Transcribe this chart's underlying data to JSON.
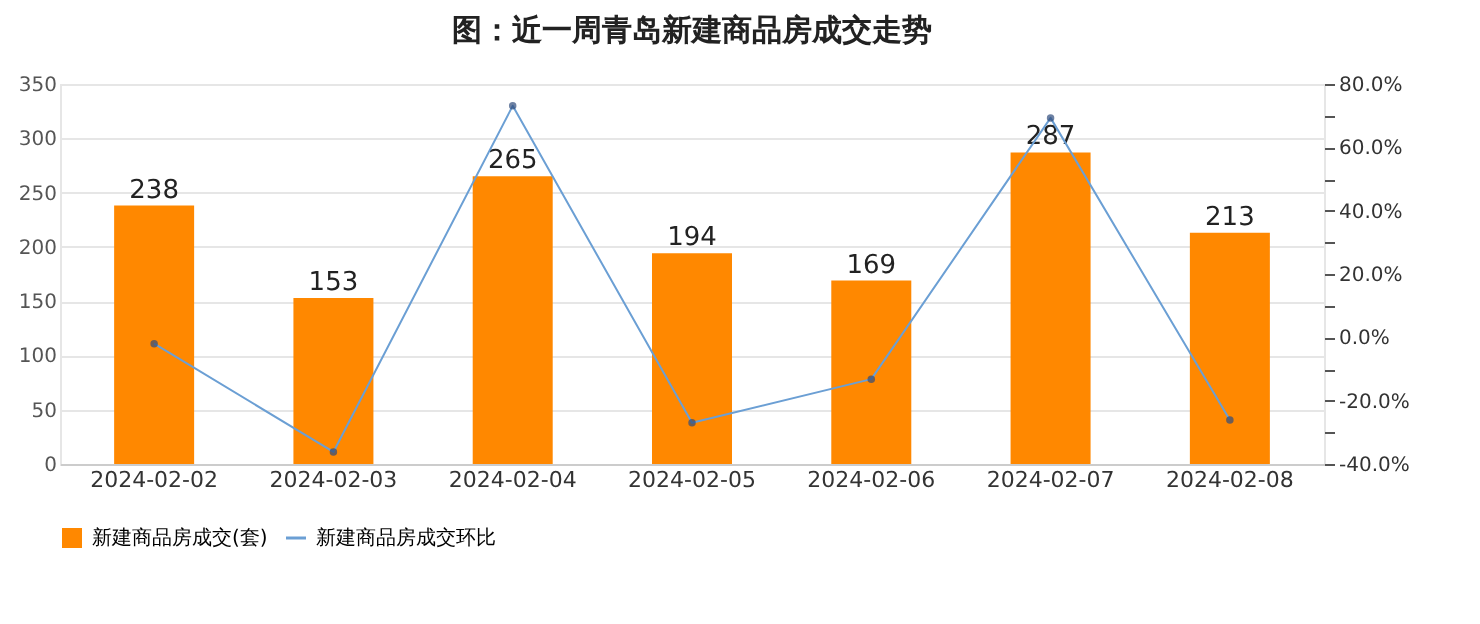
{
  "chart_data": {
    "type": "bar",
    "title": "图：近一周青岛新建商品房成交走势",
    "categories": [
      "2024-02-02",
      "2024-02-03",
      "2024-02-04",
      "2024-02-05",
      "2024-02-06",
      "2024-02-07",
      "2024-02-08"
    ],
    "series": [
      {
        "name": "新建商品房成交(套)",
        "color": "#ff8800",
        "values": [
          238,
          153,
          265,
          194,
          169,
          287,
          213
        ],
        "data_labels": true
      },
      {
        "name": "新建商品房成交环比",
        "type": "line",
        "axis": "y2",
        "color": "#6b9fd4",
        "marker": "circle",
        "values": [
          -2.0,
          -36.2,
          73.1,
          -27.0,
          -13.2,
          69.3,
          -26.1
        ]
      }
    ],
    "ylim": [
      0,
      350
    ],
    "yticks": [
      0,
      50,
      100,
      150,
      200,
      250,
      300,
      350
    ],
    "y2lim": [
      -40,
      80
    ],
    "y2ticks": [
      {
        "value": -40,
        "label": "-40.0%"
      },
      {
        "value": -30,
        "label": null
      },
      {
        "value": -20,
        "label": "-20.0%"
      },
      {
        "value": -10,
        "label": null
      },
      {
        "value": 0,
        "label": "0.0%"
      },
      {
        "value": 10,
        "label": null
      },
      {
        "value": 20,
        "label": "20.0%"
      },
      {
        "value": 30,
        "label": null
      },
      {
        "value": 40,
        "label": "40.0%"
      },
      {
        "value": 50,
        "label": null
      },
      {
        "value": 60,
        "label": "60.0%"
      },
      {
        "value": 70,
        "label": null
      },
      {
        "value": 80,
        "label": "80.0%"
      }
    ],
    "grid": "y",
    "legend": "bottom"
  }
}
